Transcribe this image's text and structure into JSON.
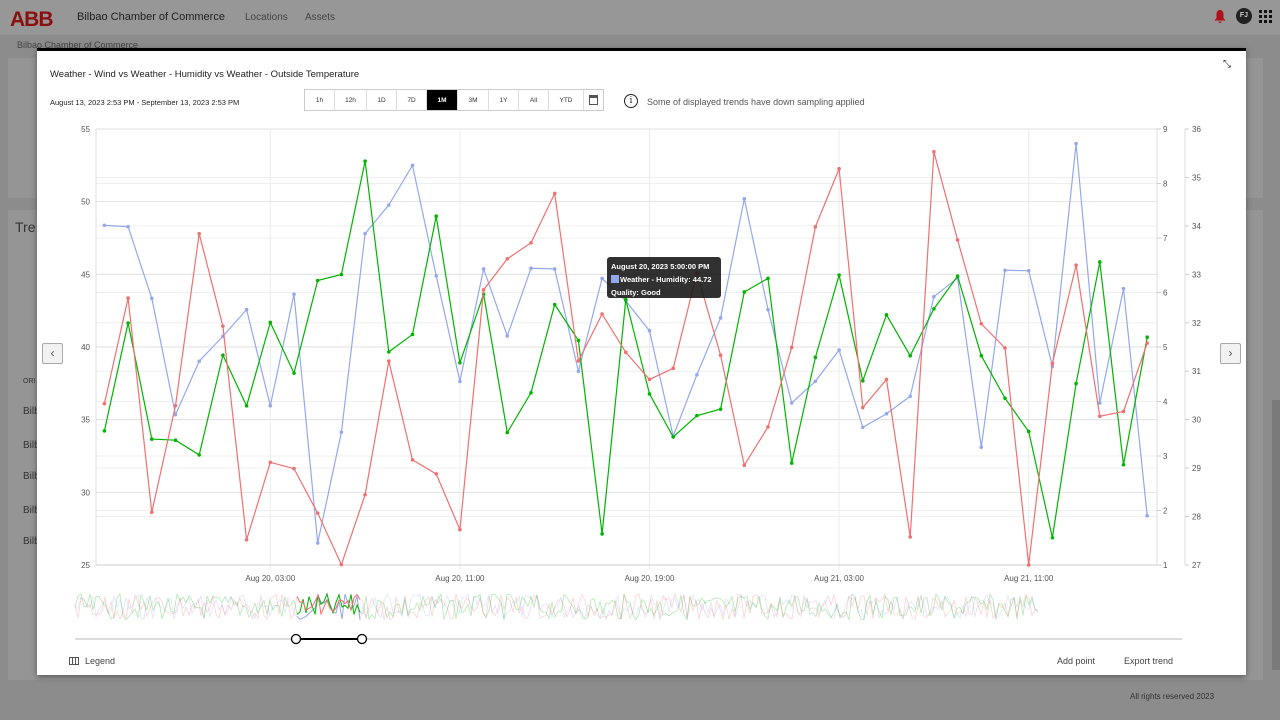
{
  "header": {
    "logo": "ABB",
    "app_title": "Bilbao Chamber of Commerce",
    "nav": [
      "Locations",
      "Assets"
    ],
    "avatar": "FJ",
    "bell_color": "#d0021b"
  },
  "breadcrumb": "Bilbao Chamber of Commerce",
  "background": {
    "card_title": "Tre",
    "table_header": "ORI",
    "rows": [
      "Bilb",
      "Bilb",
      "Bilb",
      "Bilb",
      "Bilb"
    ],
    "footer": "All rights reserved 2023"
  },
  "modal": {
    "title": "Weather - Wind vs Weather - Humidity vs Weather - Outside Temperature",
    "date_range": "August 13, 2023 2:53 PM - September 13, 2023 2:53 PM",
    "ranges": [
      "1h",
      "12h",
      "1D",
      "7D",
      "1M",
      "3M",
      "1Y",
      "All",
      "YTD"
    ],
    "active_range": "1M",
    "info_text": "Some of displayed trends have down sampling applied",
    "legend_label": "Legend",
    "add_point": "Add point",
    "export_trend": "Export trend",
    "tooltip": {
      "time": "August 20, 2023 5:00:00 PM",
      "series": "Weather - Humidity",
      "value": "44.72",
      "label": "Weather - Humidity: 44.72",
      "quality": "Quality: Good"
    }
  },
  "chart_data": {
    "type": "line",
    "grid": true,
    "x_tick_labels": [
      "Aug 20, 03:00",
      "Aug 20, 11:00",
      "Aug 20, 19:00",
      "Aug 21, 03:00",
      "Aug 21, 11:00"
    ],
    "x_ticks": [
      "2023-08-20 03:00",
      "2023-08-20 11:00",
      "2023-08-20 19:00",
      "2023-08-21 03:00",
      "2023-08-21 11:00"
    ],
    "xlim": [
      "2023-08-19 19:40",
      "2023-08-21 16:20"
    ],
    "axes": {
      "left": {
        "range": [
          25,
          55
        ],
        "ticks": [
          25,
          30,
          35,
          40,
          45,
          50,
          55
        ]
      },
      "right1": {
        "range": [
          1,
          9
        ],
        "ticks": [
          1,
          2,
          3,
          4,
          5,
          6,
          7,
          8,
          9
        ]
      },
      "right2": {
        "range": [
          27,
          36
        ],
        "ticks": [
          27,
          28,
          29,
          30,
          31,
          32,
          33,
          34,
          35,
          36
        ]
      }
    },
    "x": [
      "2023-08-19 20:00",
      "2023-08-19 21:00",
      "2023-08-19 22:00",
      "2023-08-19 23:00",
      "2023-08-20 00:00",
      "2023-08-20 01:00",
      "2023-08-20 02:00",
      "2023-08-20 03:00",
      "2023-08-20 04:00",
      "2023-08-20 05:00",
      "2023-08-20 06:00",
      "2023-08-20 07:00",
      "2023-08-20 08:00",
      "2023-08-20 09:00",
      "2023-08-20 10:00",
      "2023-08-20 11:00",
      "2023-08-20 12:00",
      "2023-08-20 13:00",
      "2023-08-20 14:00",
      "2023-08-20 15:00",
      "2023-08-20 16:00",
      "2023-08-20 17:00",
      "2023-08-20 18:00",
      "2023-08-20 19:00",
      "2023-08-20 20:00",
      "2023-08-20 21:00",
      "2023-08-20 22:00",
      "2023-08-20 23:00",
      "2023-08-21 00:00",
      "2023-08-21 01:00",
      "2023-08-21 02:00",
      "2023-08-21 03:00",
      "2023-08-21 04:00",
      "2023-08-21 05:00",
      "2023-08-21 06:00",
      "2023-08-21 07:00",
      "2023-08-21 08:00",
      "2023-08-21 09:00",
      "2023-08-21 10:00",
      "2023-08-21 11:00",
      "2023-08-21 12:00",
      "2023-08-21 13:00",
      "2023-08-21 14:00",
      "2023-08-21 15:00",
      "2023-08-21 16:00"
    ],
    "series": [
      {
        "name": "Weather - Humidity",
        "axis": "left",
        "color": "#94a8ee",
        "values": [
          48.37,
          48.28,
          43.35,
          35.34,
          39.02,
          40.74,
          42.57,
          35.96,
          43.63,
          26.51,
          34.13,
          47.8,
          49.77,
          52.5,
          44.89,
          37.64,
          45.37,
          40.76,
          45.42,
          45.37,
          38.33,
          44.72,
          43.17,
          41.12,
          33.86,
          38.09,
          42.0,
          50.2,
          42.57,
          36.15,
          37.64,
          39.79,
          34.47,
          35.41,
          36.61,
          43.46,
          44.75,
          33.1,
          45.28,
          45.25,
          38.67,
          53.99,
          36.15,
          44.01,
          28.39
        ]
      },
      {
        "name": "Weather - Wind",
        "axis": "right1",
        "color": "#00b400",
        "values": [
          3.46,
          5.44,
          3.31,
          3.29,
          3.02,
          4.85,
          3.92,
          5.45,
          4.52,
          6.22,
          6.33,
          8.41,
          4.91,
          5.23,
          7.4,
          4.71,
          5.97,
          3.43,
          4.16,
          5.78,
          5.12,
          1.57,
          5.87,
          4.14,
          3.35,
          3.74,
          3.86,
          6.01,
          6.26,
          2.87,
          4.81,
          6.32,
          4.38,
          5.59,
          4.84,
          5.7,
          6.3,
          4.84,
          4.06,
          3.45,
          1.5,
          4.33,
          6.56,
          2.84,
          5.18
        ]
      },
      {
        "name": "Weather - Outside Temperature",
        "axis": "right2",
        "color": "#f07070",
        "values": [
          30.33,
          32.51,
          28.09,
          30.29,
          33.84,
          31.93,
          27.52,
          29.12,
          28.99,
          28.07,
          27.01,
          28.45,
          31.21,
          29.17,
          28.88,
          27.73,
          32.68,
          33.32,
          33.65,
          34.67,
          31.21,
          32.18,
          31.39,
          30.83,
          31.06,
          33.03,
          31.33,
          29.06,
          29.85,
          31.49,
          33.98,
          35.18,
          30.25,
          30.83,
          27.58,
          35.53,
          33.71,
          31.98,
          31.48,
          27.0,
          31.16,
          33.19,
          30.07,
          30.17,
          31.58
        ]
      }
    ]
  }
}
